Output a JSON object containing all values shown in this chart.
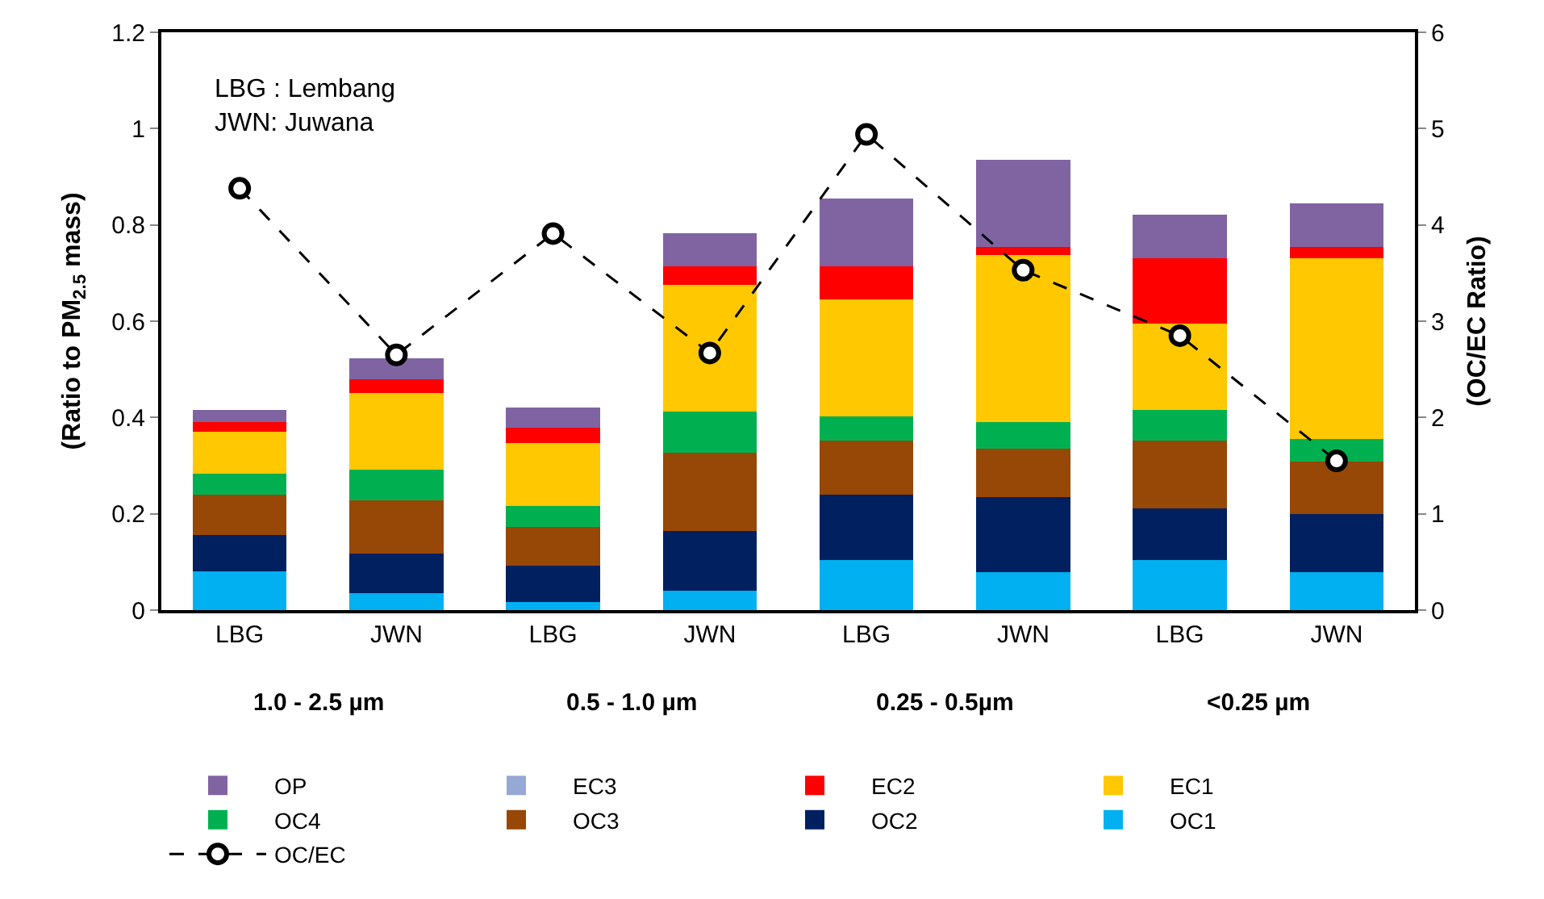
{
  "chart_data": {
    "type": "bar",
    "stacked": true,
    "categories": [
      "LBG",
      "JWN",
      "LBG",
      "JWN",
      "LBG",
      "JWN",
      "LBG",
      "JWN"
    ],
    "ylabel": "(Ratio to PM$_{2.5}$ mass)",
    "y2label": "(OC/EC Ratio)",
    "ylim": [
      0,
      1.2
    ],
    "yticks": [
      0,
      0.2,
      0.4,
      0.6,
      0.8,
      1,
      1.2
    ],
    "y2lim": [
      0,
      6
    ],
    "y2ticks": [
      0,
      1,
      2,
      3,
      4,
      5,
      6
    ],
    "legend": "bottom",
    "annotations": [
      "LBG : Lembang\nJWN: Juwana",
      "1.0 - 2.5 µm",
      "0.5 - 1.0 µm",
      "0.25 - 0.5µm",
      "<0.25 µm"
    ],
    "series": [
      {
        "name": "OC1",
        "color": "#00b0f0",
        "values": [
          0.081,
          0.035,
          0.017,
          0.04,
          0.104,
          0.078,
          0.104,
          0.078
        ]
      },
      {
        "name": "OC2",
        "color": "#002060",
        "values": [
          0.075,
          0.083,
          0.075,
          0.125,
          0.136,
          0.156,
          0.107,
          0.121
        ]
      },
      {
        "name": "OC3",
        "color": "#974706",
        "values": [
          0.084,
          0.11,
          0.081,
          0.162,
          0.112,
          0.101,
          0.141,
          0.11
        ]
      },
      {
        "name": "OC4",
        "color": "#00b050",
        "values": [
          0.043,
          0.064,
          0.044,
          0.086,
          0.05,
          0.055,
          0.064,
          0.047
        ]
      },
      {
        "name": "EC1",
        "color": "#ffc800",
        "values": [
          0.087,
          0.159,
          0.13,
          0.263,
          0.243,
          0.347,
          0.179,
          0.375
        ]
      },
      {
        "name": "EC2",
        "color": "#ff0000",
        "values": [
          0.02,
          0.029,
          0.031,
          0.038,
          0.069,
          0.017,
          0.136,
          0.023
        ]
      },
      {
        "name": "EC3",
        "color": "#95a9d4",
        "values": [
          0,
          0,
          0,
          0,
          0,
          0,
          0,
          0
        ]
      },
      {
        "name": "OP",
        "color": "#8064a2",
        "values": [
          0.026,
          0.043,
          0.042,
          0.069,
          0.141,
          0.182,
          0.09,
          0.09
        ]
      },
      {
        "name": "OC/EC",
        "type": "line",
        "axis": "y2",
        "color": "#000000",
        "marker": "circle",
        "line_style": "dashed",
        "values": [
          4.38,
          2.65,
          3.91,
          2.67,
          4.94,
          3.53,
          2.85,
          1.55
        ]
      }
    ]
  }
}
